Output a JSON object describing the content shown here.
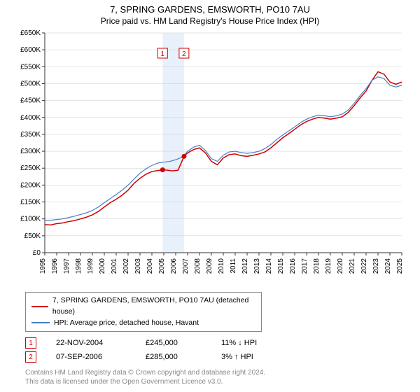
{
  "title": "7, SPRING GARDENS, EMSWORTH, PO10 7AU",
  "subtitle": "Price paid vs. HM Land Registry's House Price Index (HPI)",
  "chart": {
    "type": "line",
    "background": "#ffffff",
    "plot_background": "#ffffff",
    "grid_color": "#cccccc",
    "axis_color": "#333333",
    "tick_fontsize": 10,
    "y_axis": {
      "min": 0,
      "max": 650000,
      "step": 50000,
      "labels": [
        "£0",
        "£50K",
        "£100K",
        "£150K",
        "£200K",
        "£250K",
        "£300K",
        "£350K",
        "£400K",
        "£450K",
        "£500K",
        "£550K",
        "£600K",
        "£650K"
      ]
    },
    "x_axis": {
      "min": 1995,
      "max": 2025,
      "labels": [
        "1995",
        "1996",
        "1997",
        "1998",
        "1999",
        "2000",
        "2001",
        "2002",
        "2003",
        "2004",
        "2005",
        "2006",
        "2007",
        "2008",
        "2009",
        "2010",
        "2011",
        "2012",
        "2013",
        "2014",
        "2015",
        "2016",
        "2017",
        "2018",
        "2019",
        "2020",
        "2021",
        "2022",
        "2023",
        "2024",
        "2025"
      ]
    },
    "sale_band": {
      "x_start": 2004.9,
      "x_end": 2006.7,
      "fill": "#e8f0fb"
    },
    "sale_markers": [
      {
        "label": "1",
        "x": 2004.9,
        "y": 245000,
        "color": "#d00000"
      },
      {
        "label": "2",
        "x": 2006.7,
        "y": 285000,
        "color": "#d00000"
      }
    ],
    "series": [
      {
        "name": "property",
        "color": "#d00000",
        "width": 1.5,
        "points": [
          [
            1995,
            83000
          ],
          [
            1995.5,
            82000
          ],
          [
            1996,
            86000
          ],
          [
            1996.5,
            88000
          ],
          [
            1997,
            92000
          ],
          [
            1997.5,
            95000
          ],
          [
            1998,
            100000
          ],
          [
            1998.5,
            105000
          ],
          [
            1999,
            112000
          ],
          [
            1999.5,
            122000
          ],
          [
            2000,
            135000
          ],
          [
            2000.5,
            148000
          ],
          [
            2001,
            158000
          ],
          [
            2001.5,
            170000
          ],
          [
            2002,
            185000
          ],
          [
            2002.5,
            205000
          ],
          [
            2003,
            220000
          ],
          [
            2003.5,
            232000
          ],
          [
            2004,
            240000
          ],
          [
            2004.5,
            243000
          ],
          [
            2004.9,
            245000
          ],
          [
            2005.3,
            244000
          ],
          [
            2005.7,
            242000
          ],
          [
            2006.2,
            244000
          ],
          [
            2006.7,
            285000
          ],
          [
            2007,
            295000
          ],
          [
            2007.5,
            305000
          ],
          [
            2008,
            310000
          ],
          [
            2008.5,
            295000
          ],
          [
            2009,
            270000
          ],
          [
            2009.5,
            260000
          ],
          [
            2010,
            280000
          ],
          [
            2010.5,
            290000
          ],
          [
            2011,
            292000
          ],
          [
            2011.5,
            287000
          ],
          [
            2012,
            285000
          ],
          [
            2012.5,
            288000
          ],
          [
            2013,
            292000
          ],
          [
            2013.5,
            298000
          ],
          [
            2014,
            310000
          ],
          [
            2014.5,
            325000
          ],
          [
            2015,
            340000
          ],
          [
            2015.5,
            352000
          ],
          [
            2016,
            365000
          ],
          [
            2016.5,
            378000
          ],
          [
            2017,
            388000
          ],
          [
            2017.5,
            395000
          ],
          [
            2018,
            400000
          ],
          [
            2018.5,
            398000
          ],
          [
            2019,
            395000
          ],
          [
            2019.5,
            398000
          ],
          [
            2020,
            402000
          ],
          [
            2020.5,
            415000
          ],
          [
            2021,
            435000
          ],
          [
            2021.5,
            458000
          ],
          [
            2022,
            478000
          ],
          [
            2022.5,
            510000
          ],
          [
            2023,
            535000
          ],
          [
            2023.5,
            528000
          ],
          [
            2024,
            505000
          ],
          [
            2024.5,
            498000
          ],
          [
            2025,
            505000
          ]
        ]
      },
      {
        "name": "hpi",
        "color": "#4a7ec8",
        "width": 1.2,
        "points": [
          [
            1995,
            95000
          ],
          [
            1995.5,
            96000
          ],
          [
            1996,
            98000
          ],
          [
            1996.5,
            100000
          ],
          [
            1997,
            104000
          ],
          [
            1997.5,
            108000
          ],
          [
            1998,
            113000
          ],
          [
            1998.5,
            118000
          ],
          [
            1999,
            125000
          ],
          [
            1999.5,
            135000
          ],
          [
            2000,
            148000
          ],
          [
            2000.5,
            160000
          ],
          [
            2001,
            172000
          ],
          [
            2001.5,
            185000
          ],
          [
            2002,
            200000
          ],
          [
            2002.5,
            218000
          ],
          [
            2003,
            235000
          ],
          [
            2003.5,
            248000
          ],
          [
            2004,
            258000
          ],
          [
            2004.5,
            265000
          ],
          [
            2005,
            268000
          ],
          [
            2005.5,
            270000
          ],
          [
            2006,
            275000
          ],
          [
            2006.5,
            282000
          ],
          [
            2007,
            300000
          ],
          [
            2007.5,
            312000
          ],
          [
            2008,
            318000
          ],
          [
            2008.5,
            302000
          ],
          [
            2009,
            278000
          ],
          [
            2009.5,
            270000
          ],
          [
            2010,
            288000
          ],
          [
            2010.5,
            298000
          ],
          [
            2011,
            300000
          ],
          [
            2011.5,
            296000
          ],
          [
            2012,
            294000
          ],
          [
            2012.5,
            296000
          ],
          [
            2013,
            300000
          ],
          [
            2013.5,
            308000
          ],
          [
            2014,
            320000
          ],
          [
            2014.5,
            335000
          ],
          [
            2015,
            348000
          ],
          [
            2015.5,
            360000
          ],
          [
            2016,
            372000
          ],
          [
            2016.5,
            385000
          ],
          [
            2017,
            395000
          ],
          [
            2017.5,
            402000
          ],
          [
            2018,
            407000
          ],
          [
            2018.5,
            405000
          ],
          [
            2019,
            402000
          ],
          [
            2019.5,
            405000
          ],
          [
            2020,
            410000
          ],
          [
            2020.5,
            422000
          ],
          [
            2021,
            442000
          ],
          [
            2021.5,
            465000
          ],
          [
            2022,
            485000
          ],
          [
            2022.5,
            510000
          ],
          [
            2023,
            520000
          ],
          [
            2023.5,
            515000
          ],
          [
            2024,
            495000
          ],
          [
            2024.5,
            490000
          ],
          [
            2025,
            495000
          ]
        ]
      }
    ]
  },
  "legend": {
    "series1_label": "7, SPRING GARDENS, EMSWORTH, PO10 7AU (detached house)",
    "series1_color": "#d00000",
    "series2_label": "HPI: Average price, detached house, Havant",
    "series2_color": "#4a7ec8"
  },
  "sales": [
    {
      "marker": "1",
      "date": "22-NOV-2004",
      "price": "£245,000",
      "hpi_diff": "11% ↓ HPI",
      "marker_color": "#d00000"
    },
    {
      "marker": "2",
      "date": "07-SEP-2006",
      "price": "£285,000",
      "hpi_diff": "3% ↑ HPI",
      "marker_color": "#d00000"
    }
  ],
  "footer_line1": "Contains HM Land Registry data © Crown copyright and database right 2024.",
  "footer_line2": "This data is licensed under the Open Government Licence v3.0."
}
